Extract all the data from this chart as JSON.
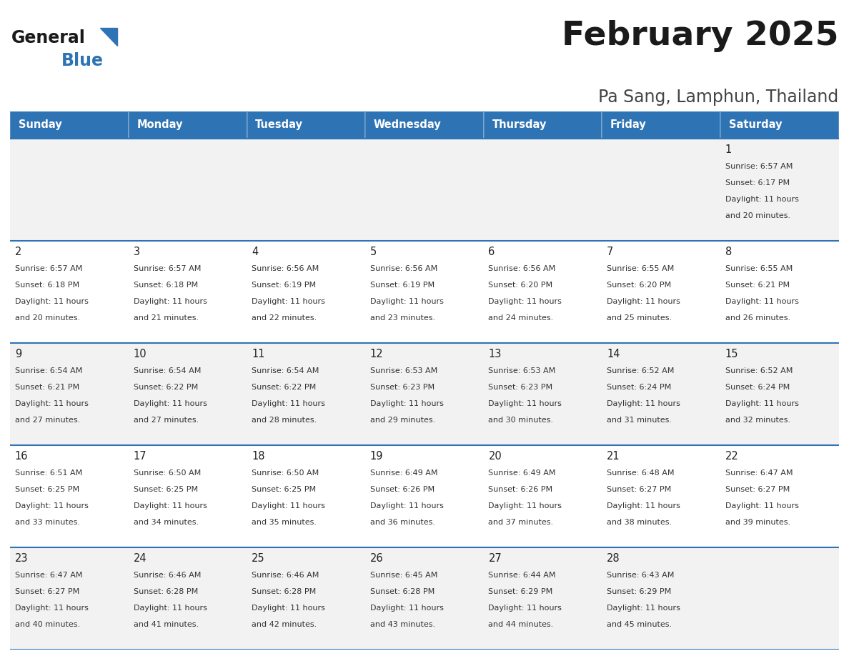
{
  "title": "February 2025",
  "subtitle": "Pa Sang, Lamphun, Thailand",
  "header_color": "#2E74B5",
  "header_text_color": "#FFFFFF",
  "cell_bg_even": "#F2F2F2",
  "cell_bg_odd": "#FFFFFF",
  "border_color": "#2E74B5",
  "text_color": "#333333",
  "day_num_color": "#222222",
  "day_headers": [
    "Sunday",
    "Monday",
    "Tuesday",
    "Wednesday",
    "Thursday",
    "Friday",
    "Saturday"
  ],
  "days": [
    {
      "day": 1,
      "col": 6,
      "row": 0,
      "sunrise": "6:57 AM",
      "sunset": "6:17 PM",
      "daylight": "11 hours and 20 minutes."
    },
    {
      "day": 2,
      "col": 0,
      "row": 1,
      "sunrise": "6:57 AM",
      "sunset": "6:18 PM",
      "daylight": "11 hours and 20 minutes."
    },
    {
      "day": 3,
      "col": 1,
      "row": 1,
      "sunrise": "6:57 AM",
      "sunset": "6:18 PM",
      "daylight": "11 hours and 21 minutes."
    },
    {
      "day": 4,
      "col": 2,
      "row": 1,
      "sunrise": "6:56 AM",
      "sunset": "6:19 PM",
      "daylight": "11 hours and 22 minutes."
    },
    {
      "day": 5,
      "col": 3,
      "row": 1,
      "sunrise": "6:56 AM",
      "sunset": "6:19 PM",
      "daylight": "11 hours and 23 minutes."
    },
    {
      "day": 6,
      "col": 4,
      "row": 1,
      "sunrise": "6:56 AM",
      "sunset": "6:20 PM",
      "daylight": "11 hours and 24 minutes."
    },
    {
      "day": 7,
      "col": 5,
      "row": 1,
      "sunrise": "6:55 AM",
      "sunset": "6:20 PM",
      "daylight": "11 hours and 25 minutes."
    },
    {
      "day": 8,
      "col": 6,
      "row": 1,
      "sunrise": "6:55 AM",
      "sunset": "6:21 PM",
      "daylight": "11 hours and 26 minutes."
    },
    {
      "day": 9,
      "col": 0,
      "row": 2,
      "sunrise": "6:54 AM",
      "sunset": "6:21 PM",
      "daylight": "11 hours and 27 minutes."
    },
    {
      "day": 10,
      "col": 1,
      "row": 2,
      "sunrise": "6:54 AM",
      "sunset": "6:22 PM",
      "daylight": "11 hours and 27 minutes."
    },
    {
      "day": 11,
      "col": 2,
      "row": 2,
      "sunrise": "6:54 AM",
      "sunset": "6:22 PM",
      "daylight": "11 hours and 28 minutes."
    },
    {
      "day": 12,
      "col": 3,
      "row": 2,
      "sunrise": "6:53 AM",
      "sunset": "6:23 PM",
      "daylight": "11 hours and 29 minutes."
    },
    {
      "day": 13,
      "col": 4,
      "row": 2,
      "sunrise": "6:53 AM",
      "sunset": "6:23 PM",
      "daylight": "11 hours and 30 minutes."
    },
    {
      "day": 14,
      "col": 5,
      "row": 2,
      "sunrise": "6:52 AM",
      "sunset": "6:24 PM",
      "daylight": "11 hours and 31 minutes."
    },
    {
      "day": 15,
      "col": 6,
      "row": 2,
      "sunrise": "6:52 AM",
      "sunset": "6:24 PM",
      "daylight": "11 hours and 32 minutes."
    },
    {
      "day": 16,
      "col": 0,
      "row": 3,
      "sunrise": "6:51 AM",
      "sunset": "6:25 PM",
      "daylight": "11 hours and 33 minutes."
    },
    {
      "day": 17,
      "col": 1,
      "row": 3,
      "sunrise": "6:50 AM",
      "sunset": "6:25 PM",
      "daylight": "11 hours and 34 minutes."
    },
    {
      "day": 18,
      "col": 2,
      "row": 3,
      "sunrise": "6:50 AM",
      "sunset": "6:25 PM",
      "daylight": "11 hours and 35 minutes."
    },
    {
      "day": 19,
      "col": 3,
      "row": 3,
      "sunrise": "6:49 AM",
      "sunset": "6:26 PM",
      "daylight": "11 hours and 36 minutes."
    },
    {
      "day": 20,
      "col": 4,
      "row": 3,
      "sunrise": "6:49 AM",
      "sunset": "6:26 PM",
      "daylight": "11 hours and 37 minutes."
    },
    {
      "day": 21,
      "col": 5,
      "row": 3,
      "sunrise": "6:48 AM",
      "sunset": "6:27 PM",
      "daylight": "11 hours and 38 minutes."
    },
    {
      "day": 22,
      "col": 6,
      "row": 3,
      "sunrise": "6:47 AM",
      "sunset": "6:27 PM",
      "daylight": "11 hours and 39 minutes."
    },
    {
      "day": 23,
      "col": 0,
      "row": 4,
      "sunrise": "6:47 AM",
      "sunset": "6:27 PM",
      "daylight": "11 hours and 40 minutes."
    },
    {
      "day": 24,
      "col": 1,
      "row": 4,
      "sunrise": "6:46 AM",
      "sunset": "6:28 PM",
      "daylight": "11 hours and 41 minutes."
    },
    {
      "day": 25,
      "col": 2,
      "row": 4,
      "sunrise": "6:46 AM",
      "sunset": "6:28 PM",
      "daylight": "11 hours and 42 minutes."
    },
    {
      "day": 26,
      "col": 3,
      "row": 4,
      "sunrise": "6:45 AM",
      "sunset": "6:28 PM",
      "daylight": "11 hours and 43 minutes."
    },
    {
      "day": 27,
      "col": 4,
      "row": 4,
      "sunrise": "6:44 AM",
      "sunset": "6:29 PM",
      "daylight": "11 hours and 44 minutes."
    },
    {
      "day": 28,
      "col": 5,
      "row": 4,
      "sunrise": "6:43 AM",
      "sunset": "6:29 PM",
      "daylight": "11 hours and 45 minutes."
    }
  ]
}
